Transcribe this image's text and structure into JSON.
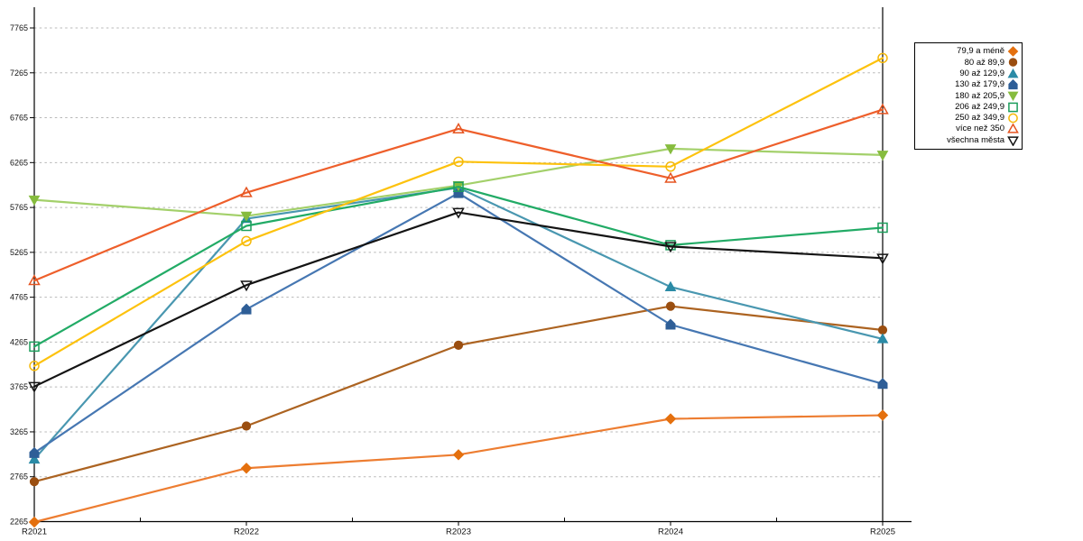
{
  "chart_data": {
    "type": "line",
    "title": "",
    "xlabel": "",
    "ylabel": "",
    "categories": [
      "R2021",
      "R2022",
      "R2023",
      "R2024",
      "R2025"
    ],
    "y_ticks": [
      2265,
      2765,
      3265,
      3765,
      4265,
      4765,
      5265,
      5765,
      6265,
      6765,
      7265,
      7765
    ],
    "ylim": [
      2265,
      7980
    ],
    "grid": "horizontal-dashed",
    "legend_position": "outside-top-right",
    "series": [
      {
        "name": "79,9 a méně",
        "marker": "diamond",
        "open": false,
        "line_color": "#ED7D31",
        "marker_color": "#E4700E",
        "values": [
          2260,
          2860,
          3010,
          3410,
          3450
        ]
      },
      {
        "name": "80 až 89,9",
        "marker": "circle",
        "open": false,
        "line_color": "#AC6321",
        "marker_color": "#9A4E10",
        "values": [
          2710,
          3330,
          4230,
          4665,
          4400
        ]
      },
      {
        "name": "90 až 129,9",
        "marker": "triangle-up",
        "open": false,
        "line_color": "#4997B0",
        "marker_color": "#2B8BA6",
        "values": [
          2960,
          5640,
          5985,
          4880,
          4300
        ]
      },
      {
        "name": "130 až 179,9",
        "marker": "pentagon",
        "open": false,
        "line_color": "#4677B2",
        "marker_color": "#2E5E97",
        "values": [
          3030,
          4630,
          5925,
          4460,
          3800
        ]
      },
      {
        "name": "180 až 205,9",
        "marker": "triangle-down",
        "open": false,
        "line_color": "#A3D06A",
        "marker_color": "#86BC3E",
        "values": [
          5850,
          5670,
          6010,
          6420,
          6350
        ]
      },
      {
        "name": "206 až 249,9",
        "marker": "square",
        "open": true,
        "line_color": "#22AB66",
        "marker_color": "#1C9E5C",
        "values": [
          4215,
          5560,
          5995,
          5345,
          5540
        ]
      },
      {
        "name": "250 až 349,9",
        "marker": "circle",
        "open": true,
        "line_color": "#FDC20D",
        "marker_color": "#F5B90A",
        "values": [
          4000,
          5390,
          6275,
          6220,
          7430
        ]
      },
      {
        "name": "více než 350",
        "marker": "triangle-up",
        "open": true,
        "line_color": "#EE5F2B",
        "marker_color": "#E55420",
        "values": [
          4950,
          5930,
          6640,
          6090,
          6855
        ]
      },
      {
        "name": "všechna města",
        "marker": "triangle-down",
        "open": true,
        "line_color": "#141414",
        "marker_color": "#141414",
        "values": [
          3770,
          4900,
          5710,
          5330,
          5200
        ]
      }
    ]
  }
}
